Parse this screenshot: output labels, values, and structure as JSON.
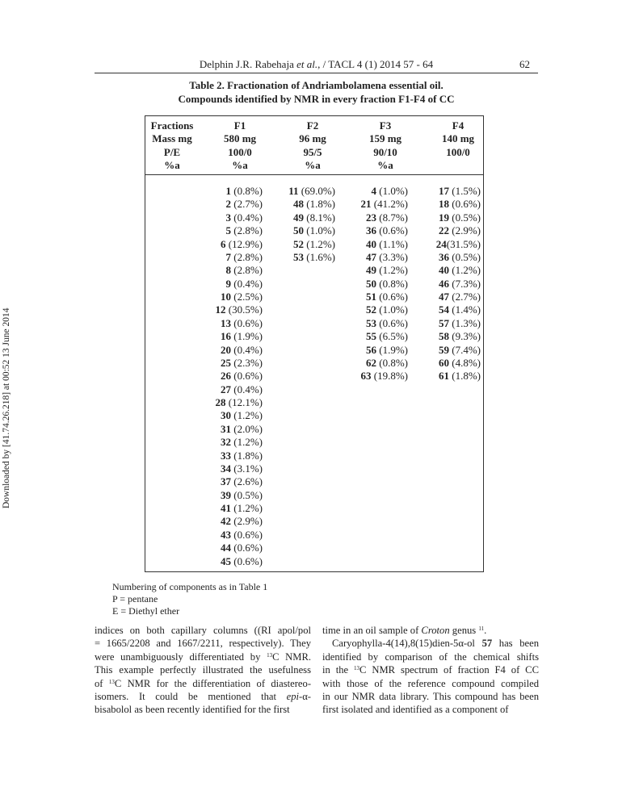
{
  "running_header": {
    "text_before": "Delphin J.R. Rabehaja ",
    "italic": "et al.",
    "text_after": ", / TACL 4 (1) 2014 57 - 64",
    "page": "62"
  },
  "caption": {
    "line1": "Table 2. Fractionation of Andriambolamena essential oil.",
    "line2": "Compounds identified by NMR in every fraction F1-F4 of CC"
  },
  "table": {
    "headers": [
      [
        "Fractions",
        "Mass mg",
        "P/E",
        "%a"
      ],
      [
        "F1",
        "580 mg",
        "100/0",
        "%a"
      ],
      [
        "F2",
        "96 mg",
        "95/5",
        "%a"
      ],
      [
        "F3",
        "159 mg",
        "90/10",
        "%a"
      ],
      [
        "F4",
        "140 mg",
        "100/0",
        ""
      ]
    ],
    "columns": [
      [
        [
          "1",
          "(0.8%)"
        ],
        [
          "2",
          "(2.7%)"
        ],
        [
          "3",
          "(0.4%)"
        ],
        [
          "5",
          "(2.8%)"
        ],
        [
          "6",
          "(12.9%)"
        ],
        [
          "7",
          "(2.8%)"
        ],
        [
          "8",
          "(2.8%)"
        ],
        [
          "9",
          "(0.4%)"
        ],
        [
          "10",
          "(2.5%)"
        ],
        [
          "12",
          "(30.5%)"
        ],
        [
          "13",
          "(0.6%)"
        ],
        [
          "16",
          "(1.9%)"
        ],
        [
          "20",
          "(0.4%)"
        ],
        [
          "25",
          "(2.3%)"
        ],
        [
          "26",
          "(0.6%)"
        ],
        [
          "27",
          "(0.4%)"
        ],
        [
          "28",
          "(12.1%)"
        ],
        [
          "30",
          "(1.2%)"
        ],
        [
          "31",
          "(2.0%)"
        ],
        [
          "32",
          "(1.2%)"
        ],
        [
          "33",
          "(1.8%)"
        ],
        [
          "34",
          "(3.1%)"
        ],
        [
          "37",
          "(2.6%)"
        ],
        [
          "39",
          "(0.5%)"
        ],
        [
          "41",
          "(1.2%)"
        ],
        [
          "42",
          "(2.9%)"
        ],
        [
          "43",
          "(0.6%)"
        ],
        [
          "44",
          "(0.6%)"
        ],
        [
          "45",
          "(0.6%)"
        ]
      ],
      [
        [
          "11",
          "(69.0%)"
        ],
        [
          "48",
          "(1.8%)"
        ],
        [
          "49",
          "(8.1%)"
        ],
        [
          "50",
          "(1.0%)"
        ],
        [
          "52",
          "(1.2%)"
        ],
        [
          "53",
          "(1.6%)"
        ]
      ],
      [
        [
          "4",
          "(1.0%)"
        ],
        [
          "21",
          "(41.2%)"
        ],
        [
          "23",
          "(8.7%)"
        ],
        [
          "36",
          "(0.6%)"
        ],
        [
          "40",
          "(1.1%)"
        ],
        [
          "47",
          "(3.3%)"
        ],
        [
          "49",
          "(1.2%)"
        ],
        [
          "50",
          "(0.8%)"
        ],
        [
          "51",
          "(0.6%)"
        ],
        [
          "52",
          "(1.0%)"
        ],
        [
          "53",
          "(0.6%)"
        ],
        [
          "55",
          "(6.5%)"
        ],
        [
          "56",
          "(1.9%)"
        ],
        [
          "62",
          "(0.8%)"
        ],
        [
          "63",
          "(19.8%)"
        ]
      ],
      [
        [
          "17",
          "(1.5%)"
        ],
        [
          "18",
          "(0.6%)"
        ],
        [
          "19",
          "(0.5%)"
        ],
        [
          "22",
          "(2.9%)"
        ],
        [
          "24",
          "(31.5%)",
          "tight"
        ],
        [
          "36",
          "(0.5%)"
        ],
        [
          "40",
          "(1.2%)"
        ],
        [
          "46",
          "(7.3%)"
        ],
        [
          "47",
          "(2.7%)"
        ],
        [
          "54",
          "(1.4%)"
        ],
        [
          "57",
          "(1.3%)"
        ],
        [
          "58",
          "(9.3%)"
        ],
        [
          "59",
          "(7.4%)"
        ],
        [
          "60",
          "(4.8%)"
        ],
        [
          "61",
          "(1.8%)"
        ]
      ]
    ]
  },
  "notes": [
    "Numbering of components as in Table 1",
    "P = pentane",
    "E = Diethyl ether"
  ],
  "body_left": [
    "indices on both capillary columns ((RI apol/pol",
    "= 1665/2208 and 1667/2211, respectively). They",
    "were unambiguously differentiated by <sup>13</sup>C NMR.",
    "This example perfectly illustrated the usefulness",
    "of <sup>13</sup>C NMR for the differentiation of diastereo-",
    "isomers. It could be mentioned that <i>epi</i>-α-",
    "bisabolol as been recently identified for the first"
  ],
  "body_right": [
    "time in an oil sample of <i>Croton</i> genus <sup>11</sup>.",
    "Caryophylla-4(14),8(15)dien-5α-ol <b>57</b> has been",
    "identified by comparison of the chemical shifts",
    "in the <sup>13</sup>C NMR spectrum of fraction F4 of CC",
    "with those of the reference compound compiled",
    "in our NMR data library. This compound has been",
    "first isolated and identified as a component of"
  ],
  "sidebar": "Downloaded by [41.74.26.218] at 00:52 13 June 2014"
}
